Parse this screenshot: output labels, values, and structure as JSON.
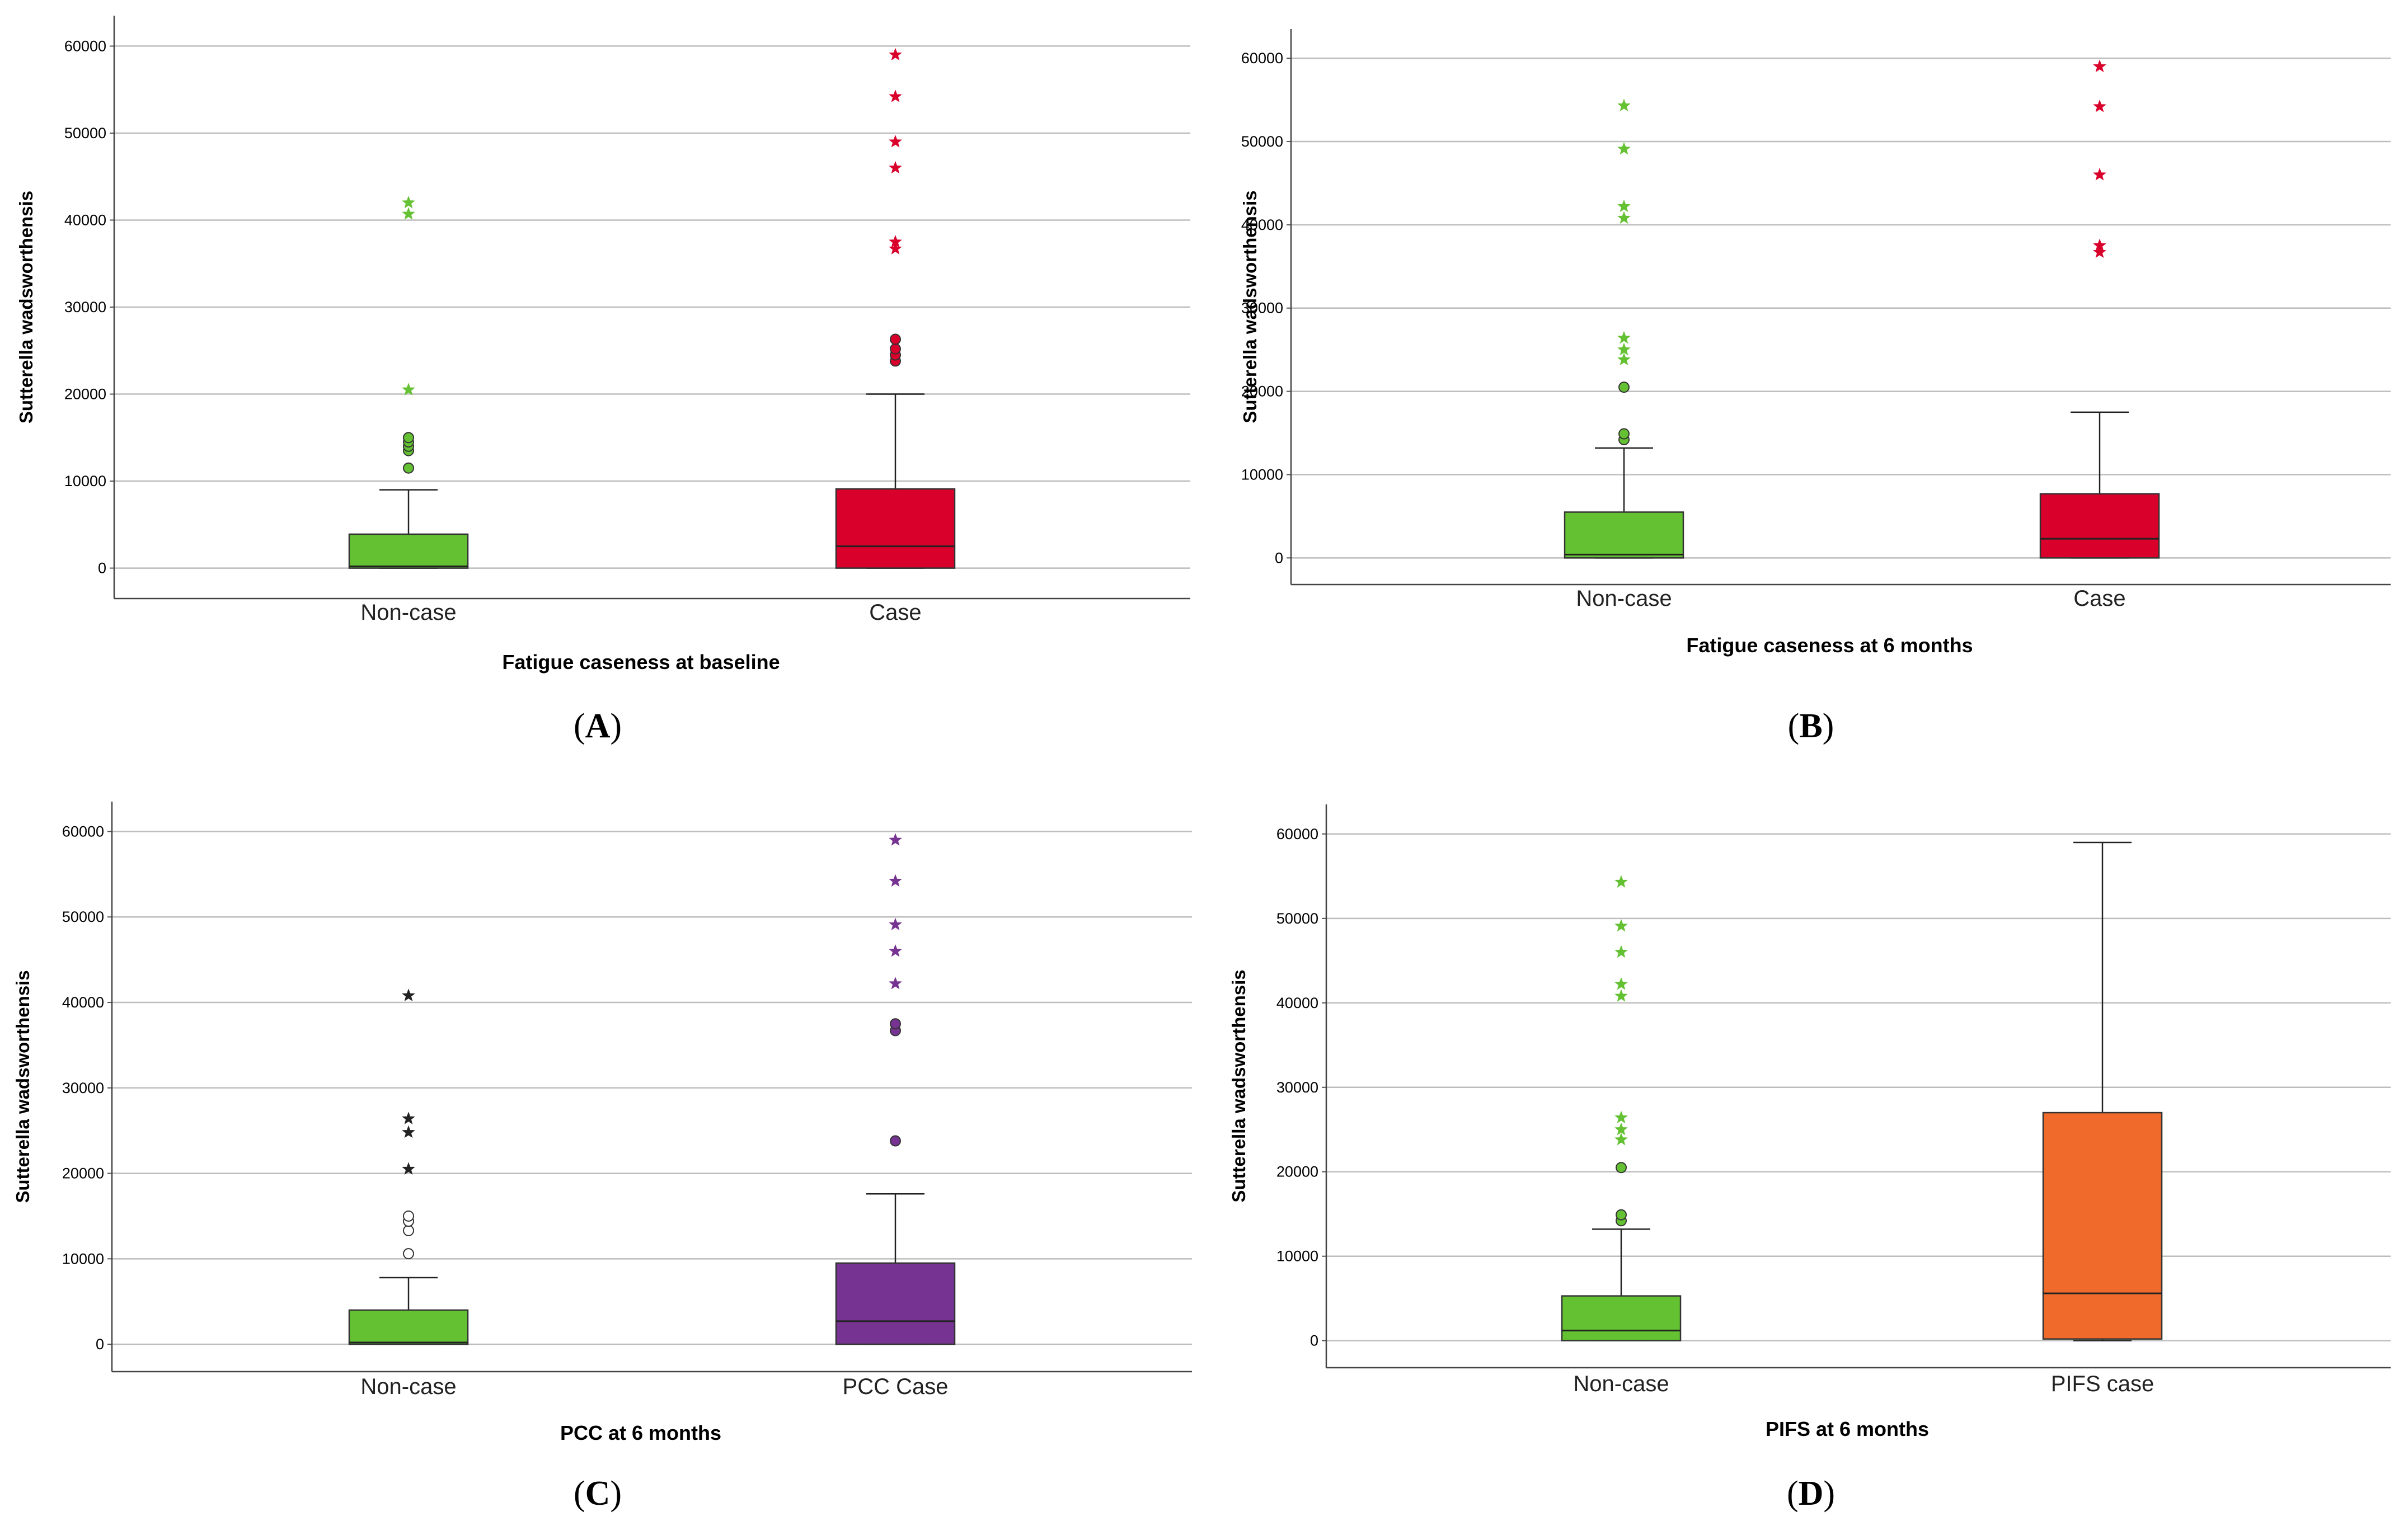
{
  "figure": {
    "panel_labels": [
      "(A)",
      "(B)",
      "(C)",
      "(D)"
    ]
  },
  "chart_data": [
    {
      "type": "boxplot",
      "panel": "A",
      "xlabel": "Fatigue caseness at baseline",
      "ylabel": "Sutterella wadsworthensis",
      "ylim": [
        -3500,
        63500
      ],
      "yticks": [
        0,
        10000,
        20000,
        30000,
        40000,
        50000,
        60000
      ],
      "grid": true,
      "groups": [
        {
          "name": "Non-case",
          "color": "#63c132",
          "q1": 0,
          "median": 200,
          "q3": 3900,
          "whisker_low": 0,
          "whisker_high": 9000,
          "outliers": [
            11500,
            13500,
            14000,
            14500,
            15000
          ],
          "extremes": [
            20500,
            40700,
            42000
          ]
        },
        {
          "name": "Case",
          "color": "#d9002b",
          "q1": 0,
          "median": 2500,
          "q3": 9100,
          "whisker_low": 0,
          "whisker_high": 20000,
          "outliers": [
            23800,
            24500,
            25200,
            26300
          ],
          "extremes": [
            36700,
            37500,
            46000,
            49000,
            54200,
            59000
          ]
        }
      ]
    },
    {
      "type": "boxplot",
      "panel": "B",
      "xlabel": "Fatigue caseness at 6 months",
      "ylabel": "Sutterella wadsworthensis",
      "ylim": [
        -3200,
        63500
      ],
      "yticks": [
        0,
        10000,
        20000,
        30000,
        40000,
        50000,
        60000
      ],
      "grid": true,
      "groups": [
        {
          "name": "Non-case",
          "color": "#63c132",
          "q1": 0,
          "median": 400,
          "q3": 5500,
          "whisker_low": 0,
          "whisker_high": 13200,
          "outliers": [
            14200,
            14900,
            20500
          ],
          "extremes": [
            23800,
            25000,
            26400,
            40800,
            42200,
            49100,
            54300
          ]
        },
        {
          "name": "Case",
          "color": "#d9002b",
          "q1": 0,
          "median": 2300,
          "q3": 7700,
          "whisker_low": 0,
          "whisker_high": 17500,
          "outliers": [],
          "extremes": [
            36700,
            37500,
            46000,
            54200,
            59000
          ]
        }
      ]
    },
    {
      "type": "boxplot",
      "panel": "C",
      "xlabel": "PCC at 6 months",
      "ylabel": "Sutterella wadsworthensis",
      "ylim": [
        -3200,
        63500
      ],
      "yticks": [
        0,
        10000,
        20000,
        30000,
        40000,
        50000,
        60000
      ],
      "grid": true,
      "groups": [
        {
          "name": "Non-case",
          "color": "#63c132",
          "q1": 0,
          "median": 200,
          "q3": 4000,
          "whisker_low": 0,
          "whisker_high": 7800,
          "outliers_color": "#ffffff",
          "extremes_color": "#222222",
          "outliers": [
            10600,
            13300,
            14400,
            15000
          ],
          "extremes": [
            20500,
            24800,
            26400,
            40800
          ]
        },
        {
          "name": "PCC Case",
          "color": "#773391",
          "q1": 0,
          "median": 2700,
          "q3": 9500,
          "whisker_low": 0,
          "whisker_high": 17600,
          "outliers": [
            23800,
            36700,
            37500
          ],
          "extremes": [
            42200,
            46000,
            49100,
            54200,
            59000
          ]
        }
      ]
    },
    {
      "type": "boxplot",
      "panel": "D",
      "xlabel": "PIFS at 6 months",
      "ylabel": "Sutterella wadsworthensis",
      "ylim": [
        -3200,
        63500
      ],
      "yticks": [
        0,
        10000,
        20000,
        30000,
        40000,
        50000,
        60000
      ],
      "grid": true,
      "groups": [
        {
          "name": "Non-case",
          "color": "#63c132",
          "q1": 0,
          "median": 1200,
          "q3": 5300,
          "whisker_low": 0,
          "whisker_high": 13200,
          "outliers": [
            14200,
            14900,
            20500
          ],
          "extremes": [
            23800,
            25000,
            26400,
            40800,
            42200,
            46000,
            49100,
            54300
          ]
        },
        {
          "name": "PIFS case",
          "color": "#f06a2c",
          "q1": 200,
          "median": 5600,
          "q3": 27000,
          "whisker_low": 0,
          "whisker_high": 59000,
          "outliers": [],
          "extremes": []
        }
      ]
    }
  ]
}
